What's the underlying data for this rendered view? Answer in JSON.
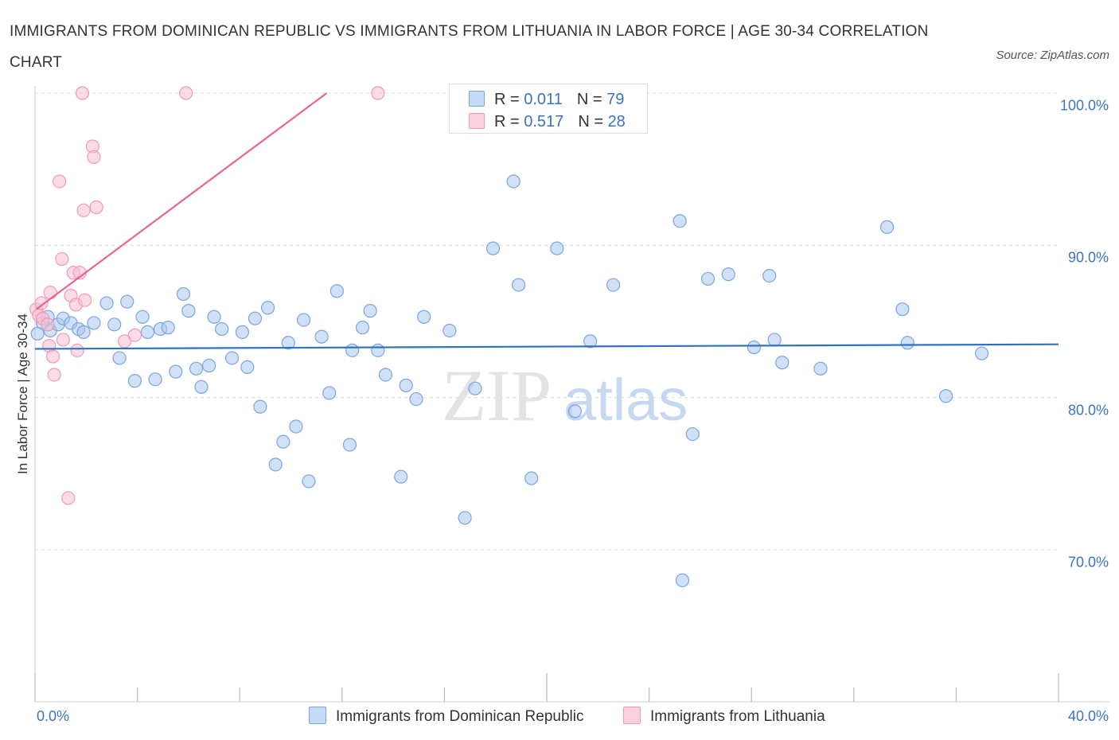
{
  "chart_data": {
    "type": "scatter",
    "title": "IMMIGRANTS FROM DOMINICAN REPUBLIC VS IMMIGRANTS FROM LITHUANIA IN LABOR FORCE | AGE 30-34 CORRELATION CHART",
    "source": "Source: ZipAtlas.com",
    "ylabel": "In Labor Force | Age 30-34",
    "xlabel": "",
    "xlim": [
      0,
      40
    ],
    "ylim": [
      60,
      100
    ],
    "x_tick_labels": [
      "0.0%",
      "40.0%"
    ],
    "y_ticks": [
      70,
      80,
      90,
      100
    ],
    "y_tick_labels": [
      "70.0%",
      "80.0%",
      "90.0%",
      "100.0%"
    ],
    "grid": "horizontal dashed",
    "watermark": "ZIPatlas",
    "legend_stats": [
      {
        "r_label": "R = ",
        "r_value": "0.011",
        "n_label": "N = ",
        "n_value": "79"
      },
      {
        "r_label": "R = ",
        "r_value": "0.517",
        "n_label": "N = ",
        "n_value": "28"
      }
    ],
    "series": [
      {
        "name": "Immigrants from Dominican Republic",
        "color": "#a9c6f0",
        "stroke": "#7ba4e0",
        "trend_color": "#2f72c4",
        "trend": {
          "x": [
            0,
            40
          ],
          "y": [
            83.2,
            83.5
          ]
        },
        "points": [
          [
            0.3,
            84.9
          ],
          [
            0.5,
            85.3
          ],
          [
            0.6,
            84.4
          ],
          [
            0.9,
            84.8
          ],
          [
            1.1,
            85.2
          ],
          [
            1.4,
            84.9
          ],
          [
            1.7,
            84.5
          ],
          [
            1.9,
            84.3
          ],
          [
            2.3,
            84.9
          ],
          [
            2.8,
            86.2
          ],
          [
            3.1,
            84.8
          ],
          [
            3.3,
            82.6
          ],
          [
            3.6,
            86.3
          ],
          [
            3.9,
            81.1
          ],
          [
            4.2,
            85.3
          ],
          [
            4.4,
            84.3
          ],
          [
            4.7,
            81.2
          ],
          [
            4.9,
            84.5
          ],
          [
            5.2,
            84.6
          ],
          [
            5.5,
            81.7
          ],
          [
            5.8,
            86.8
          ],
          [
            6.0,
            85.7
          ],
          [
            6.3,
            81.9
          ],
          [
            6.5,
            80.7
          ],
          [
            6.8,
            82.1
          ],
          [
            7.0,
            85.3
          ],
          [
            7.3,
            84.5
          ],
          [
            7.7,
            82.6
          ],
          [
            8.1,
            84.3
          ],
          [
            8.3,
            82.0
          ],
          [
            8.6,
            85.2
          ],
          [
            8.8,
            79.4
          ],
          [
            9.1,
            85.9
          ],
          [
            9.4,
            75.6
          ],
          [
            9.7,
            77.1
          ],
          [
            9.9,
            83.6
          ],
          [
            10.2,
            78.1
          ],
          [
            10.5,
            85.1
          ],
          [
            10.7,
            74.5
          ],
          [
            11.2,
            84.0
          ],
          [
            11.5,
            80.3
          ],
          [
            11.8,
            87.0
          ],
          [
            12.3,
            76.9
          ],
          [
            12.4,
            83.1
          ],
          [
            12.8,
            84.6
          ],
          [
            13.1,
            85.7
          ],
          [
            13.4,
            83.1
          ],
          [
            13.7,
            81.5
          ],
          [
            14.3,
            74.8
          ],
          [
            14.5,
            80.8
          ],
          [
            14.9,
            79.9
          ],
          [
            15.2,
            85.3
          ],
          [
            16.2,
            84.4
          ],
          [
            16.8,
            72.1
          ],
          [
            17.2,
            80.6
          ],
          [
            17.9,
            89.8
          ],
          [
            18.7,
            94.2
          ],
          [
            18.9,
            87.4
          ],
          [
            19.4,
            74.7
          ],
          [
            20.4,
            89.8
          ],
          [
            21.1,
            79.1
          ],
          [
            21.7,
            83.7
          ],
          [
            22.6,
            87.4
          ],
          [
            25.2,
            91.6
          ],
          [
            25.3,
            68.0
          ],
          [
            25.7,
            77.6
          ],
          [
            26.3,
            87.8
          ],
          [
            27.1,
            88.1
          ],
          [
            28.1,
            83.3
          ],
          [
            28.7,
            88.0
          ],
          [
            28.9,
            83.8
          ],
          [
            29.2,
            82.3
          ],
          [
            30.7,
            81.9
          ],
          [
            33.3,
            91.2
          ],
          [
            33.9,
            85.8
          ],
          [
            34.1,
            83.6
          ],
          [
            35.6,
            80.1
          ],
          [
            37.0,
            82.9
          ],
          [
            0.1,
            84.2
          ]
        ]
      },
      {
        "name": "Immigrants from Lithuania",
        "color": "#f7bfd2",
        "stroke": "#f199b5",
        "trend_color": "#e8668e",
        "trend": {
          "x": [
            0.05,
            11.4
          ],
          "y": [
            85.8,
            100.0
          ]
        },
        "points": [
          [
            0.05,
            85.8
          ],
          [
            0.15,
            85.4
          ],
          [
            0.25,
            86.2
          ],
          [
            0.3,
            85.2
          ],
          [
            0.5,
            84.8
          ],
          [
            0.55,
            83.4
          ],
          [
            0.6,
            86.9
          ],
          [
            0.7,
            82.7
          ],
          [
            0.75,
            81.5
          ],
          [
            0.95,
            94.2
          ],
          [
            1.05,
            89.1
          ],
          [
            1.1,
            83.8
          ],
          [
            1.3,
            73.4
          ],
          [
            1.4,
            86.7
          ],
          [
            1.5,
            88.2
          ],
          [
            1.6,
            86.1
          ],
          [
            1.65,
            83.1
          ],
          [
            1.75,
            88.2
          ],
          [
            1.85,
            100.0
          ],
          [
            1.9,
            92.3
          ],
          [
            1.95,
            86.4
          ],
          [
            2.25,
            96.5
          ],
          [
            2.3,
            95.8
          ],
          [
            2.4,
            92.5
          ],
          [
            3.5,
            83.7
          ],
          [
            3.9,
            84.1
          ],
          [
            5.9,
            100.0
          ],
          [
            13.4,
            100.0
          ]
        ]
      }
    ]
  }
}
